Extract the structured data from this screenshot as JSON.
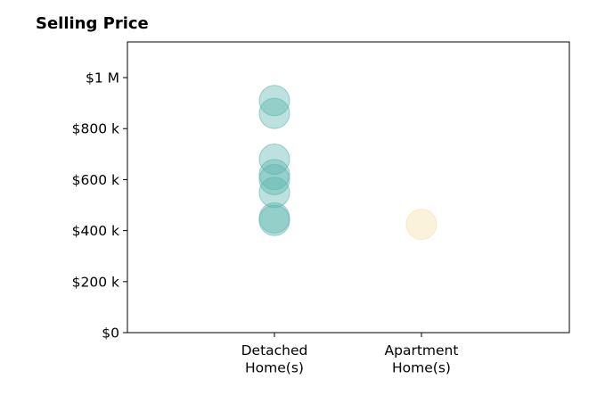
{
  "chart_data": {
    "type": "scatter",
    "title": "Selling Price",
    "xlabel": "",
    "ylabel": "",
    "categories": [
      "Detached\nHome(s)",
      "Apartment\nHome(s)"
    ],
    "category_colors": [
      "#5bb5ad",
      "#f3dfa6"
    ],
    "ylim": [
      0,
      1140000
    ],
    "yticks": [
      {
        "value": 0,
        "label": "$0"
      },
      {
        "value": 200000,
        "label": "$200 k"
      },
      {
        "value": 400000,
        "label": "$400 k"
      },
      {
        "value": 600000,
        "label": "$600 k"
      },
      {
        "value": 800000,
        "label": "$800 k"
      },
      {
        "value": 1000000,
        "label": "$1 M"
      }
    ],
    "series": [
      {
        "category": "Detached\nHome(s)",
        "values": [
          910000,
          860000,
          680000,
          620000,
          600000,
          550000,
          450000,
          440000
        ]
      },
      {
        "category": "Apartment\nHome(s)",
        "values": [
          425000
        ]
      }
    ],
    "grid": false,
    "legend": "none"
  }
}
